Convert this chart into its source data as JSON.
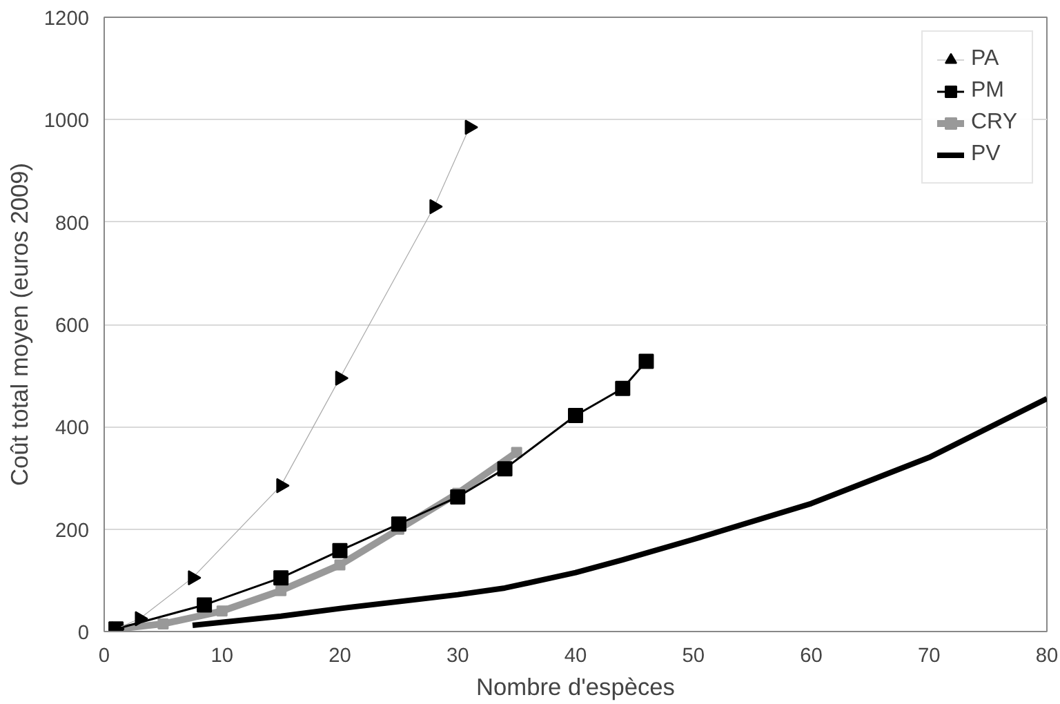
{
  "chart_data": {
    "type": "line",
    "xlabel": "Nombre d'espèces",
    "ylabel": "Coût total moyen (euros 2009)",
    "xlim": [
      0,
      80
    ],
    "xticks": [
      0,
      10,
      20,
      30,
      40,
      50,
      60,
      70,
      80
    ],
    "ylim": [
      0,
      1200
    ],
    "yticks": [
      0,
      200,
      400,
      600,
      800,
      1000,
      1200
    ],
    "grid": "y",
    "legend": "top right",
    "series": [
      {
        "name": "PA",
        "color": "#000000",
        "marker": "triangle",
        "x": [
          1,
          3,
          7.5,
          15,
          20,
          28,
          31
        ],
        "values": [
          5,
          25,
          105,
          285,
          495,
          830,
          985
        ]
      },
      {
        "name": "PM",
        "color": "#000000",
        "marker": "square",
        "x": [
          1,
          8.5,
          15,
          20,
          25,
          30,
          34,
          40,
          44,
          46
        ],
        "values": [
          5,
          52,
          105,
          158,
          210,
          263,
          318,
          422,
          475,
          528
        ]
      },
      {
        "name": "CRY",
        "color": "#999999",
        "marker": "square",
        "x": [
          1,
          5,
          10,
          15,
          20,
          25,
          30,
          35
        ],
        "values": [
          5,
          15,
          40,
          80,
          130,
          200,
          270,
          350
        ]
      },
      {
        "name": "PV",
        "color": "#000000",
        "marker": "none",
        "x": [
          7.5,
          15,
          20,
          30,
          34,
          40,
          44,
          50,
          60,
          70,
          80
        ],
        "values": [
          12,
          30,
          45,
          72,
          85,
          115,
          140,
          180,
          250,
          340,
          455
        ]
      }
    ]
  }
}
